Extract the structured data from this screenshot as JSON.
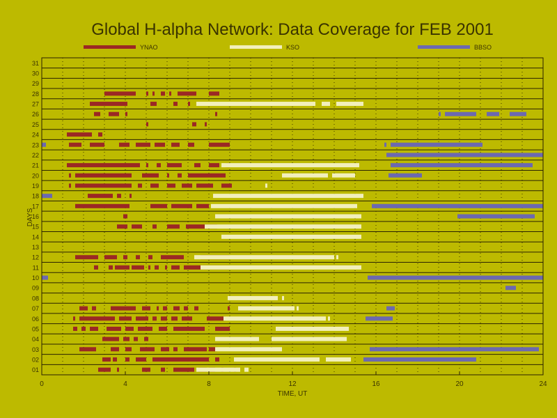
{
  "chart_data": {
    "type": "timeline",
    "title": "Global H-alpha Network: Data Coverage for FEB 2001",
    "xlabel": "TIME, UT",
    "ylabel": "DAYS",
    "xlim": [
      0,
      24
    ],
    "ylim": [
      0.5,
      31.5
    ],
    "xticks": [
      0,
      4,
      8,
      12,
      16,
      20,
      24
    ],
    "days": [
      "01",
      "02",
      "03",
      "04",
      "05",
      "06",
      "07",
      "08",
      "09",
      "10",
      "11",
      "12",
      "13",
      "14",
      "15",
      "16",
      "17",
      "18",
      "19",
      "20",
      "21",
      "22",
      "23",
      "24",
      "25",
      "26",
      "27",
      "28",
      "29",
      "30",
      "31"
    ],
    "grid": "dotted vertical every 1 h, solid horizontal per day",
    "legend_placement": "top",
    "series": [
      {
        "name": "YNAO",
        "color": "#9b2824",
        "intervals": [
          {
            "day": 28,
            "ranges": [
              [
                3.0,
                4.5
              ],
              [
                5.0,
                5.1
              ],
              [
                5.3,
                5.4
              ],
              [
                5.7,
                5.9
              ],
              [
                6.1,
                6.2
              ],
              [
                6.5,
                7.4
              ],
              [
                8.0,
                8.5
              ]
            ]
          },
          {
            "day": 27,
            "ranges": [
              [
                2.3,
                4.1
              ],
              [
                5.2,
                5.5
              ],
              [
                6.3,
                6.5
              ],
              [
                7.0,
                7.1
              ]
            ]
          },
          {
            "day": 26,
            "ranges": [
              [
                2.5,
                2.8
              ],
              [
                3.2,
                3.7
              ],
              [
                4.0,
                4.1
              ],
              [
                8.3,
                8.4
              ]
            ]
          },
          {
            "day": 25,
            "ranges": [
              [
                5.0,
                5.1
              ],
              [
                7.2,
                7.4
              ],
              [
                7.8,
                7.9
              ]
            ]
          },
          {
            "day": 24,
            "ranges": [
              [
                1.2,
                2.4
              ],
              [
                2.7,
                2.9
              ]
            ]
          },
          {
            "day": 23,
            "ranges": [
              [
                1.3,
                1.9
              ],
              [
                2.3,
                3.0
              ],
              [
                3.7,
                4.2
              ],
              [
                4.5,
                5.2
              ],
              [
                5.4,
                5.9
              ],
              [
                6.2,
                6.6
              ],
              [
                7.0,
                7.3
              ],
              [
                8.0,
                9.0
              ]
            ]
          },
          {
            "day": 21,
            "ranges": [
              [
                1.2,
                4.7
              ],
              [
                5.0,
                5.1
              ],
              [
                5.5,
                5.7
              ],
              [
                6.0,
                6.7
              ],
              [
                7.3,
                7.6
              ],
              [
                8.0,
                8.5
              ],
              [
                8.8,
                9.0
              ]
            ]
          },
          {
            "day": 20,
            "ranges": [
              [
                1.3,
                1.4
              ],
              [
                1.6,
                4.3
              ],
              [
                4.8,
                5.6
              ],
              [
                6.0,
                6.1
              ],
              [
                6.5,
                6.7
              ],
              [
                7.0,
                8.8
              ]
            ]
          },
          {
            "day": 19,
            "ranges": [
              [
                1.3,
                1.4
              ],
              [
                1.6,
                4.3
              ],
              [
                4.6,
                4.8
              ],
              [
                5.2,
                5.6
              ],
              [
                6.0,
                6.4
              ],
              [
                6.7,
                7.2
              ],
              [
                7.4,
                8.2
              ],
              [
                8.6,
                9.1
              ]
            ]
          },
          {
            "day": 18,
            "ranges": [
              [
                2.2,
                3.4
              ],
              [
                3.6,
                3.8
              ],
              [
                4.2,
                4.3
              ]
            ]
          },
          {
            "day": 17,
            "ranges": [
              [
                1.6,
                4.2
              ],
              [
                5.2,
                6.0
              ],
              [
                6.2,
                7.2
              ],
              [
                7.4,
                8.0
              ]
            ]
          },
          {
            "day": 16,
            "ranges": [
              [
                3.9,
                4.1
              ]
            ]
          },
          {
            "day": 15,
            "ranges": [
              [
                3.6,
                4.1
              ],
              [
                4.3,
                4.8
              ],
              [
                5.3,
                5.5
              ],
              [
                6.0,
                6.6
              ],
              [
                6.9,
                8.4
              ]
            ]
          },
          {
            "day": 12,
            "ranges": [
              [
                1.6,
                2.7
              ],
              [
                3.0,
                3.6
              ],
              [
                3.9,
                4.1
              ],
              [
                4.5,
                4.7
              ],
              [
                5.1,
                5.3
              ],
              [
                5.7,
                6.8
              ],
              [
                7.6,
                9.0
              ]
            ]
          },
          {
            "day": 11,
            "ranges": [
              [
                2.5,
                2.7
              ],
              [
                3.2,
                3.4
              ],
              [
                3.5,
                4.2
              ],
              [
                4.3,
                4.9
              ],
              [
                5.1,
                5.2
              ],
              [
                5.4,
                5.6
              ],
              [
                5.9,
                6.0
              ],
              [
                6.2,
                6.6
              ],
              [
                6.8,
                9.0
              ]
            ]
          },
          {
            "day": 7,
            "ranges": [
              [
                1.8,
                2.2
              ],
              [
                2.4,
                2.6
              ],
              [
                3.3,
                4.5
              ],
              [
                4.8,
                5.2
              ],
              [
                5.5,
                5.6
              ],
              [
                5.8,
                6.0
              ],
              [
                6.3,
                6.6
              ],
              [
                6.8,
                7.0
              ],
              [
                7.3,
                7.5
              ],
              [
                8.9,
                9.0
              ]
            ]
          },
          {
            "day": 6,
            "ranges": [
              [
                1.5,
                1.6
              ],
              [
                1.8,
                3.5
              ],
              [
                3.7,
                4.3
              ],
              [
                4.5,
                5.1
              ],
              [
                5.3,
                5.5
              ],
              [
                5.7,
                6.0
              ],
              [
                6.2,
                6.5
              ],
              [
                6.7,
                7.2
              ],
              [
                7.9,
                8.8
              ]
            ]
          },
          {
            "day": 5,
            "ranges": [
              [
                1.5,
                1.7
              ],
              [
                1.9,
                2.1
              ],
              [
                2.3,
                2.7
              ],
              [
                3.1,
                3.8
              ],
              [
                4.0,
                4.4
              ],
              [
                4.6,
                5.3
              ],
              [
                5.6,
                6.0
              ],
              [
                6.3,
                7.8
              ],
              [
                8.3,
                9.0
              ]
            ]
          },
          {
            "day": 4,
            "ranges": [
              [
                2.9,
                3.7
              ],
              [
                3.9,
                4.2
              ],
              [
                4.4,
                4.6
              ],
              [
                4.9,
                5.1
              ]
            ]
          },
          {
            "day": 3,
            "ranges": [
              [
                1.8,
                2.6
              ],
              [
                3.3,
                3.7
              ],
              [
                4.0,
                4.3
              ],
              [
                4.7,
                5.4
              ],
              [
                5.7,
                6.1
              ],
              [
                6.3,
                6.5
              ],
              [
                6.8,
                7.9
              ],
              [
                8.0,
                8.4
              ]
            ]
          },
          {
            "day": 2,
            "ranges": [
              [
                2.9,
                3.3
              ],
              [
                3.4,
                3.6
              ],
              [
                4.0,
                4.2
              ],
              [
                4.5,
                5.0
              ],
              [
                5.3,
                8.0
              ],
              [
                8.3,
                8.5
              ]
            ]
          },
          {
            "day": 1,
            "ranges": [
              [
                2.7,
                3.3
              ],
              [
                3.6,
                3.7
              ],
              [
                4.8,
                5.2
              ],
              [
                5.7,
                5.9
              ],
              [
                6.3,
                7.3
              ],
              [
                7.5,
                7.9
              ],
              [
                8.0,
                8.3
              ],
              [
                8.6,
                8.7
              ],
              [
                9.2,
                9.3
              ]
            ]
          }
        ]
      },
      {
        "name": "KSO",
        "color": "#f2efbc",
        "intervals": [
          {
            "day": 27,
            "ranges": [
              [
                7.4,
                13.1
              ],
              [
                13.4,
                13.8
              ],
              [
                14.1,
                15.4
              ]
            ]
          },
          {
            "day": 21,
            "ranges": [
              [
                8.6,
                15.2
              ]
            ]
          },
          {
            "day": 20,
            "ranges": [
              [
                11.5,
                13.7
              ],
              [
                13.9,
                15.0
              ]
            ]
          },
          {
            "day": 19,
            "ranges": [
              [
                10.7,
                10.8
              ]
            ]
          },
          {
            "day": 18,
            "ranges": [
              [
                8.2,
                15.4
              ]
            ]
          },
          {
            "day": 17,
            "ranges": [
              [
                8.1,
                15.1
              ]
            ]
          },
          {
            "day": 16,
            "ranges": [
              [
                8.3,
                15.3
              ]
            ]
          },
          {
            "day": 15,
            "ranges": [
              [
                7.8,
                15.3
              ]
            ]
          },
          {
            "day": 14,
            "ranges": [
              [
                8.6,
                15.3
              ]
            ]
          },
          {
            "day": 12,
            "ranges": [
              [
                7.3,
                14.0
              ],
              [
                14.1,
                14.2
              ]
            ]
          },
          {
            "day": 11,
            "ranges": [
              [
                7.6,
                15.3
              ]
            ]
          },
          {
            "day": 8,
            "ranges": [
              [
                8.9,
                11.3
              ],
              [
                11.5,
                11.6
              ]
            ]
          },
          {
            "day": 7,
            "ranges": [
              [
                9.4,
                12.1
              ],
              [
                12.2,
                12.3
              ]
            ]
          },
          {
            "day": 6,
            "ranges": [
              [
                8.7,
                13.6
              ],
              [
                13.7,
                13.8
              ]
            ]
          },
          {
            "day": 5,
            "ranges": [
              [
                11.2,
                14.7
              ]
            ]
          },
          {
            "day": 4,
            "ranges": [
              [
                8.3,
                10.4
              ],
              [
                11.0,
                14.6
              ]
            ]
          },
          {
            "day": 3,
            "ranges": [
              [
                8.3,
                11.5
              ]
            ]
          },
          {
            "day": 2,
            "ranges": [
              [
                9.2,
                13.3
              ],
              [
                13.6,
                14.8
              ]
            ]
          },
          {
            "day": 1,
            "ranges": [
              [
                7.4,
                9.5
              ],
              [
                9.7,
                9.9
              ]
            ]
          }
        ]
      },
      {
        "name": "BBSO",
        "color": "#6c69b0",
        "intervals": [
          {
            "day": 26,
            "ranges": [
              [
                19.0,
                19.1
              ],
              [
                19.3,
                20.8
              ],
              [
                21.3,
                21.9
              ],
              [
                22.4,
                23.2
              ]
            ]
          },
          {
            "day": 23,
            "ranges": [
              [
                0.0,
                0.2
              ],
              [
                16.4,
                16.5
              ],
              [
                16.7,
                21.1
              ]
            ]
          },
          {
            "day": 22,
            "ranges": [
              [
                16.5,
                24.0
              ]
            ]
          },
          {
            "day": 21,
            "ranges": [
              [
                16.7,
                23.5
              ]
            ]
          },
          {
            "day": 20,
            "ranges": [
              [
                16.6,
                18.2
              ]
            ]
          },
          {
            "day": 18,
            "ranges": [
              [
                0.0,
                0.5
              ]
            ]
          },
          {
            "day": 17,
            "ranges": [
              [
                15.8,
                24.0
              ]
            ]
          },
          {
            "day": 16,
            "ranges": [
              [
                19.9,
                23.6
              ]
            ]
          },
          {
            "day": 10,
            "ranges": [
              [
                0.0,
                0.3
              ],
              [
                15.6,
                24.0
              ]
            ]
          },
          {
            "day": 9,
            "ranges": [
              [
                22.2,
                22.7
              ]
            ]
          },
          {
            "day": 7,
            "ranges": [
              [
                16.5,
                16.9
              ]
            ]
          },
          {
            "day": 6,
            "ranges": [
              [
                15.5,
                16.8
              ]
            ]
          },
          {
            "day": 3,
            "ranges": [
              [
                15.7,
                23.8
              ]
            ]
          },
          {
            "day": 2,
            "ranges": [
              [
                15.4,
                20.8
              ]
            ]
          }
        ]
      }
    ]
  }
}
